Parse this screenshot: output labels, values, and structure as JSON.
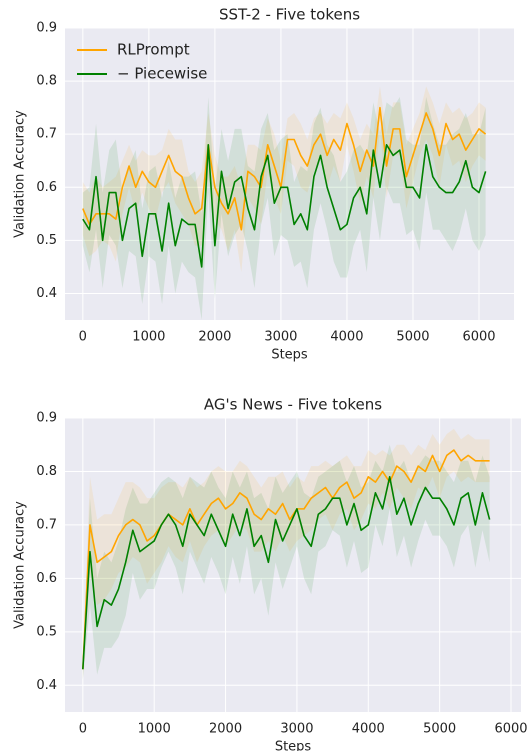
{
  "chart_data": [
    {
      "type": "line",
      "title": "SST-2 - Five tokens",
      "xlabel": "Steps",
      "ylabel": "Validation Accuracy",
      "x": [
        0,
        100,
        200,
        300,
        400,
        500,
        600,
        700,
        800,
        900,
        1000,
        1100,
        1200,
        1300,
        1400,
        1500,
        1600,
        1700,
        1800,
        1900,
        2000,
        2100,
        2200,
        2300,
        2400,
        2500,
        2600,
        2700,
        2800,
        2900,
        3000,
        3100,
        3200,
        3300,
        3400,
        3500,
        3600,
        3700,
        3800,
        3900,
        4000,
        4100,
        4200,
        4300,
        4400,
        4500,
        4600,
        4700,
        4800,
        4900,
        5000,
        5100,
        5200,
        5300,
        5400,
        5500,
        5600,
        5700,
        5800,
        5900,
        6000,
        6100
      ],
      "series": [
        {
          "name": "RLPrompt",
          "color": "#ffa500",
          "values": [
            0.56,
            0.53,
            0.55,
            0.55,
            0.55,
            0.54,
            0.6,
            0.64,
            0.6,
            0.63,
            0.61,
            0.6,
            0.63,
            0.66,
            0.63,
            0.62,
            0.58,
            0.55,
            0.56,
            0.68,
            0.6,
            0.57,
            0.55,
            0.58,
            0.52,
            0.63,
            0.62,
            0.6,
            0.68,
            0.64,
            0.6,
            0.69,
            0.69,
            0.66,
            0.64,
            0.68,
            0.7,
            0.66,
            0.69,
            0.67,
            0.72,
            0.68,
            0.63,
            0.67,
            0.64,
            0.75,
            0.64,
            0.71,
            0.71,
            0.62,
            0.66,
            0.7,
            0.74,
            0.71,
            0.66,
            0.72,
            0.69,
            0.7,
            0.67,
            0.69,
            0.71,
            0.7
          ],
          "std": [
            0.05,
            0.06,
            0.07,
            0.05,
            0.06,
            0.08,
            0.05,
            0.04,
            0.05,
            0.04,
            0.05,
            0.06,
            0.04,
            0.05,
            0.06,
            0.07,
            0.05,
            0.06,
            0.07,
            0.06,
            0.06,
            0.05,
            0.07,
            0.06,
            0.08,
            0.05,
            0.06,
            0.07,
            0.05,
            0.06,
            0.05,
            0.04,
            0.05,
            0.06,
            0.05,
            0.05,
            0.04,
            0.06,
            0.05,
            0.06,
            0.04,
            0.05,
            0.06,
            0.05,
            0.06,
            0.04,
            0.06,
            0.05,
            0.05,
            0.06,
            0.05,
            0.04,
            0.05,
            0.05,
            0.06,
            0.04,
            0.05,
            0.05,
            0.06,
            0.05,
            0.05,
            0.05
          ]
        },
        {
          "name": "− Piecewise",
          "color": "#008000",
          "values": [
            0.54,
            0.52,
            0.62,
            0.5,
            0.59,
            0.59,
            0.5,
            0.56,
            0.57,
            0.47,
            0.55,
            0.55,
            0.48,
            0.57,
            0.49,
            0.54,
            0.53,
            0.53,
            0.45,
            0.68,
            0.49,
            0.63,
            0.56,
            0.61,
            0.62,
            0.56,
            0.52,
            0.62,
            0.66,
            0.57,
            0.6,
            0.6,
            0.53,
            0.55,
            0.52,
            0.62,
            0.66,
            0.6,
            0.56,
            0.52,
            0.53,
            0.58,
            0.6,
            0.55,
            0.67,
            0.6,
            0.68,
            0.66,
            0.67,
            0.6,
            0.6,
            0.58,
            0.68,
            0.62,
            0.6,
            0.59,
            0.59,
            0.61,
            0.65,
            0.6,
            0.59,
            0.63
          ],
          "std": [
            0.05,
            0.08,
            0.1,
            0.09,
            0.08,
            0.1,
            0.09,
            0.08,
            0.1,
            0.09,
            0.08,
            0.09,
            0.1,
            0.08,
            0.09,
            0.08,
            0.09,
            0.1,
            0.1,
            0.09,
            0.1,
            0.08,
            0.09,
            0.1,
            0.09,
            0.08,
            0.11,
            0.09,
            0.08,
            0.1,
            0.09,
            0.1,
            0.08,
            0.09,
            0.11,
            0.1,
            0.09,
            0.08,
            0.1,
            0.09,
            0.1,
            0.09,
            0.08,
            0.11,
            0.09,
            0.1,
            0.08,
            0.09,
            0.1,
            0.09,
            0.08,
            0.1,
            0.09,
            0.1,
            0.08,
            0.09,
            0.11,
            0.1,
            0.09,
            0.1,
            0.11,
            0.12
          ]
        }
      ],
      "xlim": [
        -270,
        6530
      ],
      "xticks": [
        0,
        1000,
        2000,
        3000,
        4000,
        5000,
        6000
      ],
      "ylim": [
        0.35,
        0.9
      ],
      "yticks": [
        0.4,
        0.5,
        0.6,
        0.7,
        0.8,
        0.9
      ],
      "grid": true,
      "legend": "upper left"
    },
    {
      "type": "line",
      "title": "AG's News - Five tokens",
      "xlabel": "Steps",
      "ylabel": "Validation Accuracy",
      "x": [
        0,
        100,
        200,
        300,
        400,
        500,
        600,
        700,
        800,
        900,
        1000,
        1100,
        1200,
        1300,
        1400,
        1500,
        1600,
        1700,
        1800,
        1900,
        2000,
        2100,
        2200,
        2300,
        2400,
        2500,
        2600,
        2700,
        2800,
        2900,
        3000,
        3100,
        3200,
        3300,
        3400,
        3500,
        3600,
        3700,
        3800,
        3900,
        4000,
        4100,
        4200,
        4300,
        4400,
        4500,
        4600,
        4700,
        4800,
        4900,
        5000,
        5100,
        5200,
        5300,
        5400,
        5500,
        5600,
        5700
      ],
      "series": [
        {
          "color": "#ffa500",
          "values": [
            0.43,
            0.7,
            0.63,
            0.64,
            0.65,
            0.68,
            0.7,
            0.71,
            0.7,
            0.67,
            0.68,
            0.7,
            0.72,
            0.71,
            0.7,
            0.73,
            0.7,
            0.72,
            0.74,
            0.75,
            0.73,
            0.74,
            0.76,
            0.75,
            0.72,
            0.71,
            0.73,
            0.72,
            0.74,
            0.71,
            0.73,
            0.73,
            0.75,
            0.76,
            0.77,
            0.75,
            0.77,
            0.78,
            0.75,
            0.76,
            0.79,
            0.78,
            0.8,
            0.78,
            0.81,
            0.8,
            0.78,
            0.81,
            0.8,
            0.83,
            0.8,
            0.83,
            0.84,
            0.82,
            0.83,
            0.82,
            0.82,
            0.82
          ],
          "std": [
            0.02,
            0.09,
            0.08,
            0.08,
            0.07,
            0.07,
            0.08,
            0.07,
            0.07,
            0.08,
            0.07,
            0.07,
            0.06,
            0.07,
            0.07,
            0.06,
            0.07,
            0.06,
            0.06,
            0.06,
            0.07,
            0.06,
            0.06,
            0.06,
            0.07,
            0.06,
            0.06,
            0.07,
            0.06,
            0.06,
            0.06,
            0.05,
            0.06,
            0.05,
            0.05,
            0.06,
            0.05,
            0.05,
            0.06,
            0.05,
            0.05,
            0.05,
            0.04,
            0.05,
            0.04,
            0.05,
            0.05,
            0.04,
            0.04,
            0.04,
            0.05,
            0.04,
            0.04,
            0.04,
            0.04,
            0.04,
            0.04,
            0.04
          ]
        },
        {
          "color": "#008000",
          "values": [
            0.43,
            0.65,
            0.51,
            0.56,
            0.55,
            0.58,
            0.63,
            0.69,
            0.65,
            0.66,
            0.67,
            0.7,
            0.72,
            0.7,
            0.66,
            0.72,
            0.7,
            0.68,
            0.72,
            0.69,
            0.66,
            0.72,
            0.68,
            0.73,
            0.66,
            0.68,
            0.63,
            0.71,
            0.67,
            0.7,
            0.73,
            0.68,
            0.66,
            0.72,
            0.73,
            0.75,
            0.75,
            0.7,
            0.74,
            0.69,
            0.7,
            0.76,
            0.73,
            0.79,
            0.72,
            0.75,
            0.7,
            0.74,
            0.77,
            0.75,
            0.75,
            0.73,
            0.7,
            0.75,
            0.76,
            0.7,
            0.76,
            0.71
          ],
          "std": [
            0.02,
            0.1,
            0.09,
            0.09,
            0.08,
            0.09,
            0.1,
            0.08,
            0.09,
            0.08,
            0.09,
            0.08,
            0.07,
            0.08,
            0.09,
            0.07,
            0.08,
            0.09,
            0.08,
            0.08,
            0.09,
            0.08,
            0.09,
            0.07,
            0.09,
            0.08,
            0.1,
            0.08,
            0.09,
            0.08,
            0.07,
            0.08,
            0.09,
            0.07,
            0.07,
            0.06,
            0.07,
            0.08,
            0.07,
            0.08,
            0.08,
            0.06,
            0.07,
            0.06,
            0.08,
            0.07,
            0.08,
            0.07,
            0.06,
            0.07,
            0.07,
            0.07,
            0.08,
            0.07,
            0.06,
            0.08,
            0.07,
            0.08
          ]
        }
      ],
      "xlim": [
        -250,
        6140
      ],
      "xticks": [
        0,
        1000,
        2000,
        3000,
        4000,
        5000,
        6000
      ],
      "ylim": [
        0.35,
        0.9
      ],
      "yticks": [
        0.4,
        0.5,
        0.6,
        0.7,
        0.8,
        0.9
      ],
      "grid": true
    }
  ]
}
